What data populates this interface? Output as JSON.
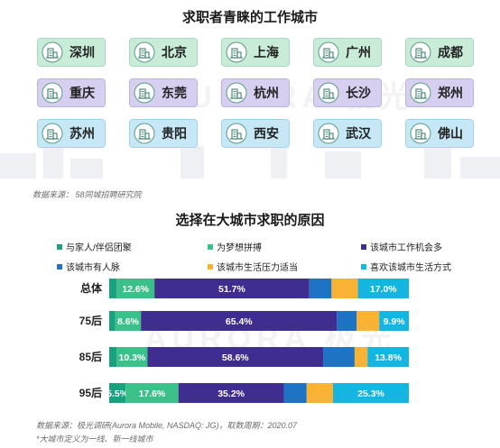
{
  "cities": {
    "title": "求职者青睐的工作城市",
    "rows": [
      [
        "深圳",
        "北京",
        "上海",
        "广州",
        "成都"
      ],
      [
        "重庆",
        "东莞",
        "杭州",
        "长沙",
        "郑州"
      ],
      [
        "苏州",
        "贵阳",
        "西安",
        "武汉",
        "佛山"
      ]
    ],
    "row_colors": [
      "#c9ecd9",
      "#d7cff0",
      "#c6e8f6"
    ],
    "icon": "building-icon",
    "source": "数据来源：  58同城招聘研究院"
  },
  "watermark": "AURORA 极光",
  "chart_data": {
    "type": "bar",
    "orientation": "horizontal",
    "stacked": true,
    "percent": true,
    "title": "选择在大城市求职的原因",
    "categories": [
      "总体",
      "75后",
      "85后",
      "95后"
    ],
    "series": [
      {
        "name": "与家人/伴侣团聚",
        "color": "#1aa17f",
        "values": [
          2.5,
          2.0,
          2.5,
          5.5
        ],
        "labels": [
          "",
          "",
          "",
          "5.5%"
        ]
      },
      {
        "name": "为梦想拼搏",
        "color": "#3cc08a",
        "values": [
          12.6,
          8.6,
          10.3,
          17.6
        ],
        "labels": [
          "12.6%",
          "8.6%",
          "10.3%",
          "17.6%"
        ]
      },
      {
        "name": "该城市工作机会多",
        "color": "#3f2d8f",
        "values": [
          51.7,
          65.4,
          58.6,
          35.2
        ],
        "labels": [
          "51.7%",
          "65.4%",
          "58.6%",
          "35.2%"
        ]
      },
      {
        "name": "该城市有人脉",
        "color": "#1e73c5",
        "values": [
          7.4,
          6.6,
          10.5,
          7.6
        ],
        "labels": [
          "",
          "",
          "",
          ""
        ]
      },
      {
        "name": "该城市生活压力适当",
        "color": "#f9b233",
        "values": [
          8.8,
          7.5,
          4.3,
          8.8
        ],
        "labels": [
          "",
          "",
          "",
          ""
        ]
      },
      {
        "name": "喜欢该城市生活方式",
        "color": "#14b5e0",
        "values": [
          17.0,
          9.9,
          13.8,
          25.3
        ],
        "labels": [
          "17.0%",
          "9.9%",
          "13.8%",
          "25.3%"
        ]
      }
    ],
    "xlim": [
      0,
      100
    ],
    "legend_position": "top",
    "source": "数据来源：极光调研(Aurora Mobile, NASDAQ: JG)，取数周期：2020.07",
    "note": "*大城市定义为一线、新一线城市"
  }
}
